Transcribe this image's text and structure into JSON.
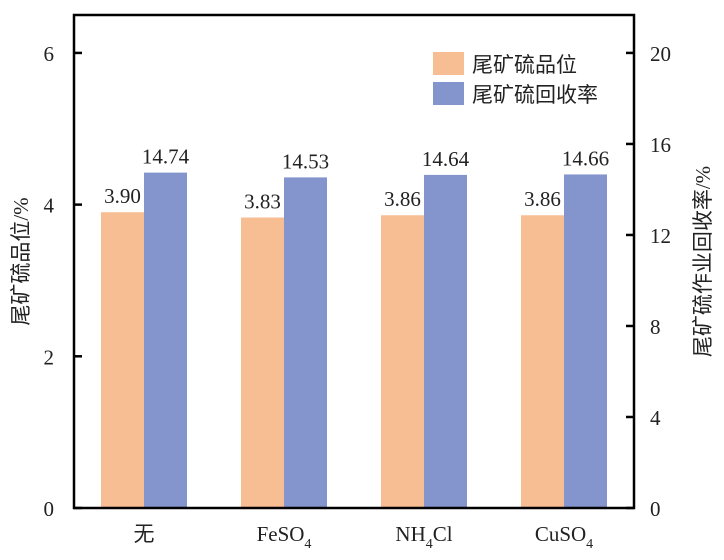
{
  "chart_data": {
    "type": "bar",
    "categories": [
      {
        "main": "无",
        "sub": ""
      },
      {
        "main": "FeSO",
        "sub": "4",
        "tail": ""
      },
      {
        "main": "NH",
        "sub": "4",
        "tail": "Cl"
      },
      {
        "main": "CuSO",
        "sub": "4",
        "tail": ""
      }
    ],
    "series": [
      {
        "name": "尾矿硫品位",
        "axis": "left",
        "color": "#F7BE94",
        "values": [
          3.9,
          3.83,
          3.86,
          3.86
        ],
        "labels": [
          "3.90",
          "3.83",
          "3.86",
          "3.86"
        ]
      },
      {
        "name": "尾矿硫回收率",
        "axis": "right",
        "color": "#8395CC",
        "values": [
          14.74,
          14.53,
          14.64,
          14.66
        ],
        "labels": [
          "14.74",
          "14.53",
          "14.64",
          "14.66"
        ]
      }
    ],
    "ylabel": "尾矿硫品位/%",
    "y2label": "尾矿硫作业回收率/%",
    "ylim": [
      0,
      6.5
    ],
    "y2lim": [
      0,
      21.667
    ],
    "yticks": [
      0,
      2,
      4,
      6
    ],
    "y2ticks": [
      0,
      4,
      8,
      12,
      16,
      20
    ],
    "legend_position": "top-right",
    "grid": false
  }
}
